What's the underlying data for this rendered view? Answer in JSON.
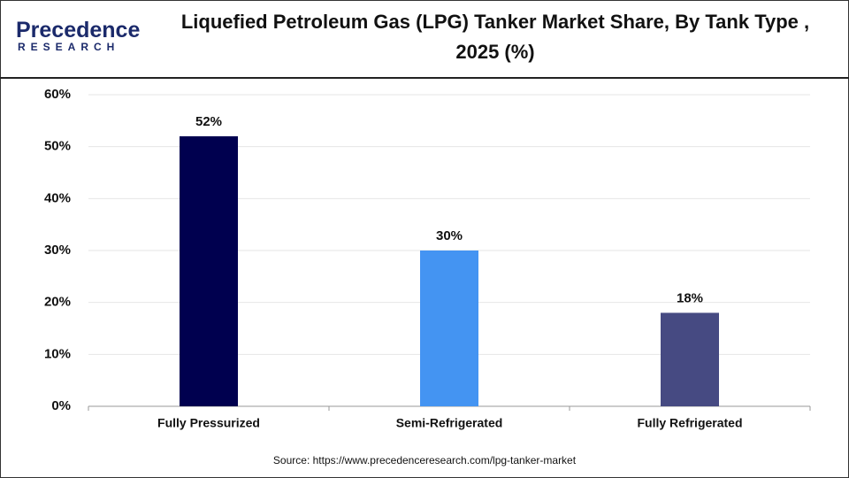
{
  "logo": {
    "name": "Precedence",
    "sub": "RESEARCH"
  },
  "chart_data": {
    "type": "bar",
    "title": "Liquefied Petroleum Gas (LPG) Tanker Market Share, By Tank Type , 2025 (%)",
    "categories": [
      "Fully Pressurized",
      "Semi-Refrigerated",
      "Fully Refrigerated"
    ],
    "values": [
      52,
      30,
      18
    ],
    "value_labels": [
      "52%",
      "30%",
      "18%"
    ],
    "colors": [
      "#00004f",
      "#4494f2",
      "#464a82"
    ],
    "ylim": [
      0,
      60
    ],
    "yticks": [
      {
        "value": 0,
        "label": "0%"
      },
      {
        "value": 10,
        "label": "10%"
      },
      {
        "value": 20,
        "label": "20%"
      },
      {
        "value": 30,
        "label": "30%"
      },
      {
        "value": 40,
        "label": "40%"
      },
      {
        "value": 50,
        "label": "50%"
      },
      {
        "value": 60,
        "label": "60%"
      }
    ],
    "grid": true,
    "source": "Source: https://www.precedenceresearch.com/lpg-tanker-market"
  }
}
